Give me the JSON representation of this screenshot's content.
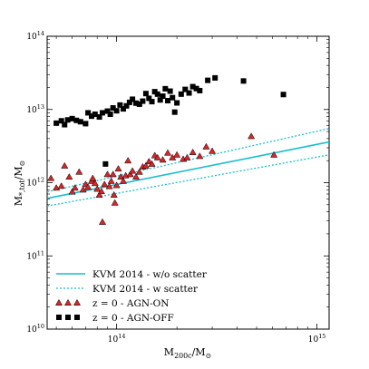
{
  "chart_data": {
    "type": "scatter",
    "xscale": "log",
    "yscale": "log",
    "xlim": [
      45000000000000,
      1150000000000000
    ],
    "ylim": [
      10000000000,
      100000000000000
    ],
    "xlabel": "M_{200c}/M_{⊙}",
    "ylabel": "M_{*,tot}/M_{⊙}",
    "x_ticks": [
      {
        "value": 100000000000000,
        "label": "10^{14}"
      },
      {
        "value": 1000000000000000,
        "label": "10^{15}"
      }
    ],
    "y_ticks": [
      {
        "value": 10000000000,
        "label": "10^{10}"
      },
      {
        "value": 100000000000,
        "label": "10^{11}"
      },
      {
        "value": 1000000000000,
        "label": "10^{12}"
      },
      {
        "value": 10000000000000,
        "label": "10^{13}"
      },
      {
        "value": 100000000000000,
        "label": "10^{14}"
      }
    ],
    "grid": false,
    "legend_position": "lower-left",
    "colors": {
      "kvm": "#17becf",
      "agn_on_fill": "#d62728",
      "agn_off_fill": "#000000",
      "axes": "#000000"
    },
    "series": [
      {
        "name": "KVM 2014 - w/o scatter",
        "kind": "line",
        "style": "solid",
        "x": [
          45000000000000,
          1150000000000000
        ],
        "y": [
          610000000000,
          3600000000000
        ]
      },
      {
        "name": "KVM 2014 - w scatter",
        "kind": "line",
        "style": "dotted",
        "x": [
          45000000000000,
          1150000000000000
        ],
        "y": [
          750000000000,
          5500000000000
        ]
      },
      {
        "name": "KVM 2014 - w scatter lower",
        "kind": "line",
        "style": "dotted",
        "x": [
          45000000000000,
          1150000000000000
        ],
        "y": [
          480000000000,
          2400000000000
        ]
      },
      {
        "name": "z = 0 - AGN-ON",
        "kind": "marker",
        "marker": "triangle",
        "points": [
          [
            47000000000000,
            1150000000000
          ],
          [
            50000000000000,
            850000000000
          ],
          [
            53000000000000,
            900000000000
          ],
          [
            55000000000000,
            1700000000000
          ],
          [
            58000000000000,
            1200000000000
          ],
          [
            60000000000000,
            750000000000
          ],
          [
            62000000000000,
            850000000000
          ],
          [
            65000000000000,
            1400000000000
          ],
          [
            68000000000000,
            800000000000
          ],
          [
            70000000000000,
            950000000000
          ],
          [
            72000000000000,
            870000000000
          ],
          [
            75000000000000,
            1050000000000
          ],
          [
            76000000000000,
            1150000000000
          ],
          [
            78000000000000,
            980000000000
          ],
          [
            80000000000000,
            820000000000
          ],
          [
            82000000000000,
            680000000000
          ],
          [
            84000000000000,
            760000000000
          ],
          [
            85000000000000,
            290000000000
          ],
          [
            87000000000000,
            950000000000
          ],
          [
            90000000000000,
            1300000000000
          ],
          [
            92000000000000,
            890000000000
          ],
          [
            94000000000000,
            1050000000000
          ],
          [
            96000000000000,
            1300000000000
          ],
          [
            97000000000000,
            680000000000
          ],
          [
            98000000000000,
            530000000000
          ],
          [
            100000000000000,
            920000000000
          ],
          [
            102000000000000,
            1550000000000
          ],
          [
            105000000000000,
            1200000000000
          ],
          [
            108000000000000,
            1050000000000
          ],
          [
            111000000000000,
            1250000000000
          ],
          [
            114000000000000,
            2000000000000
          ],
          [
            117000000000000,
            1300000000000
          ],
          [
            120000000000000,
            1450000000000
          ],
          [
            125000000000000,
            1200000000000
          ],
          [
            130000000000000,
            1400000000000
          ],
          [
            135000000000000,
            1650000000000
          ],
          [
            140000000000000,
            1700000000000
          ],
          [
            145000000000000,
            1950000000000
          ],
          [
            150000000000000,
            1800000000000
          ],
          [
            155000000000000,
            2350000000000
          ],
          [
            160000000000000,
            2200000000000
          ],
          [
            170000000000000,
            2050000000000
          ],
          [
            180000000000000,
            2550000000000
          ],
          [
            190000000000000,
            2200000000000
          ],
          [
            200000000000000,
            2400000000000
          ],
          [
            215000000000000,
            2100000000000
          ],
          [
            225000000000000,
            2200000000000
          ],
          [
            240000000000000,
            2600000000000
          ],
          [
            260000000000000,
            2300000000000
          ],
          [
            280000000000000,
            3100000000000
          ],
          [
            300000000000000,
            2700000000000
          ],
          [
            470000000000000,
            4300000000000
          ],
          [
            610000000000000,
            2400000000000
          ]
        ]
      },
      {
        "name": "z = 0 - AGN-OFF",
        "kind": "marker",
        "marker": "square",
        "points": [
          [
            50000000000000,
            6500000000000
          ],
          [
            53000000000000,
            7000000000000
          ],
          [
            55000000000000,
            6200000000000
          ],
          [
            57000000000000,
            7200000000000
          ],
          [
            60000000000000,
            7500000000000
          ],
          [
            63000000000000,
            7100000000000
          ],
          [
            66000000000000,
            6800000000000
          ],
          [
            70000000000000,
            6400000000000
          ],
          [
            72000000000000,
            9000000000000
          ],
          [
            75000000000000,
            8100000000000
          ],
          [
            78000000000000,
            8600000000000
          ],
          [
            82000000000000,
            7900000000000
          ],
          [
            85000000000000,
            9000000000000
          ],
          [
            88000000000000,
            1800000000000
          ],
          [
            90000000000000,
            9500000000000
          ],
          [
            93000000000000,
            8600000000000
          ],
          [
            96000000000000,
            10500000000000
          ],
          [
            100000000000000,
            9600000000000
          ],
          [
            104000000000000,
            11500000000000
          ],
          [
            108000000000000,
            10200000000000
          ],
          [
            112000000000000,
            11200000000000
          ],
          [
            116000000000000,
            12500000000000
          ],
          [
            120000000000000,
            13800000000000
          ],
          [
            125000000000000,
            12200000000000
          ],
          [
            130000000000000,
            11800000000000
          ],
          [
            135000000000000,
            13000000000000
          ],
          [
            140000000000000,
            16500000000000
          ],
          [
            145000000000000,
            14200000000000
          ],
          [
            150000000000000,
            12800000000000
          ],
          [
            155000000000000,
            17500000000000
          ],
          [
            160000000000000,
            16200000000000
          ],
          [
            165000000000000,
            13500000000000
          ],
          [
            170000000000000,
            15200000000000
          ],
          [
            175000000000000,
            19200000000000
          ],
          [
            180000000000000,
            13200000000000
          ],
          [
            185000000000000,
            17800000000000
          ],
          [
            190000000000000,
            14500000000000
          ],
          [
            195000000000000,
            9200000000000
          ],
          [
            200000000000000,
            12300000000000
          ],
          [
            210000000000000,
            16200000000000
          ],
          [
            220000000000000,
            18800000000000
          ],
          [
            230000000000000,
            16800000000000
          ],
          [
            240000000000000,
            20500000000000
          ],
          [
            250000000000000,
            19300000000000
          ],
          [
            260000000000000,
            18100000000000
          ],
          [
            285000000000000,
            25000000000000
          ],
          [
            310000000000000,
            27000000000000
          ],
          [
            430000000000000,
            24500000000000
          ],
          [
            680000000000000,
            16000000000000
          ]
        ]
      }
    ],
    "legend": [
      {
        "label": "KVM 2014 - w/o scatter",
        "series": 0
      },
      {
        "label": "KVM 2014 - w scatter",
        "series": 1
      },
      {
        "label": "z = 0 - AGN-ON",
        "series": 3
      },
      {
        "label": "z = 0 - AGN-OFF",
        "series": 4
      }
    ]
  }
}
